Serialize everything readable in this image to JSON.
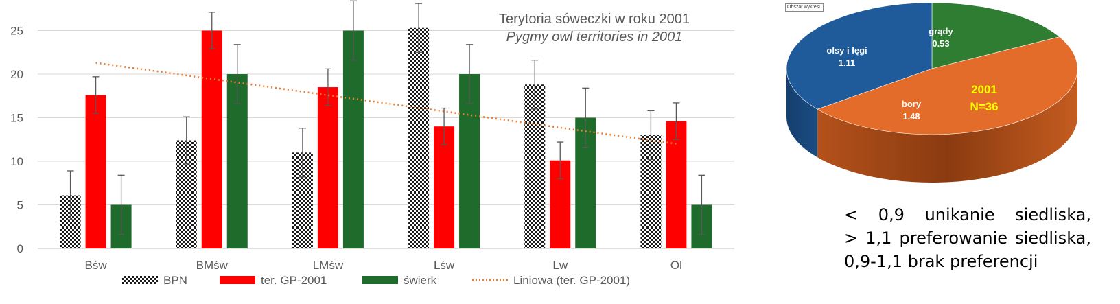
{
  "chart_data": [
    {
      "type": "bar",
      "title": "Terytoria sóweczki w roku 2001",
      "subtitle": "Pygmy owl territories in 2001",
      "categories": [
        "Bśw",
        "BMśw",
        "LMśw",
        "Lśw",
        "Lw",
        "Ol"
      ],
      "ylim": [
        0,
        27
      ],
      "yticks": [
        0,
        5,
        10,
        15,
        20,
        25
      ],
      "grid": true,
      "legend_position": "bottom",
      "series": [
        {
          "name": "BPN",
          "values": [
            6.1,
            12.4,
            11.0,
            25.3,
            18.8,
            13.0
          ],
          "errors": [
            2.8,
            2.7,
            2.8,
            2.8,
            2.8,
            2.8
          ]
        },
        {
          "name": "ter. GP-2001",
          "values": [
            17.6,
            25.0,
            18.5,
            14.0,
            10.1,
            14.6
          ],
          "errors": [
            2.1,
            2.1,
            2.1,
            2.1,
            2.1,
            2.1
          ]
        },
        {
          "name": "świerk",
          "values": [
            5.0,
            20.0,
            25.0,
            20.0,
            15.0,
            5.0
          ],
          "errors": [
            3.4,
            3.4,
            3.4,
            3.4,
            3.4,
            3.4
          ]
        }
      ],
      "trendline": {
        "name": "Liniowa (ter. GP-2001)",
        "start": 21.3,
        "end": 12.0
      }
    },
    {
      "type": "pie",
      "tag": "Obszar wykresu",
      "center_text": [
        "2001",
        "N=36"
      ],
      "slices": [
        {
          "label": "grądy",
          "value": 0.53,
          "value_text": "0.53"
        },
        {
          "label": "bory",
          "value": 1.48,
          "value_text": "1.48"
        },
        {
          "label": "olsy i łęgi",
          "value": 1.11,
          "value_text": "1.11"
        }
      ]
    }
  ],
  "colors": {
    "bpn_dark": "#1a1a1a",
    "gp2001": "#ff0000",
    "swierk": "#1e6b2b",
    "trend": "#ed7d31",
    "pie_grady": "#2e7d32",
    "pie_bory": "#e46c2a",
    "pie_olsy": "#1f5b9a"
  },
  "notes": {
    "line1": "< 0,9 unikanie siedliska,",
    "line2": "> 1,1 preferowanie siedliska,",
    "line3": "0,9-1,1 brak preferencji"
  }
}
